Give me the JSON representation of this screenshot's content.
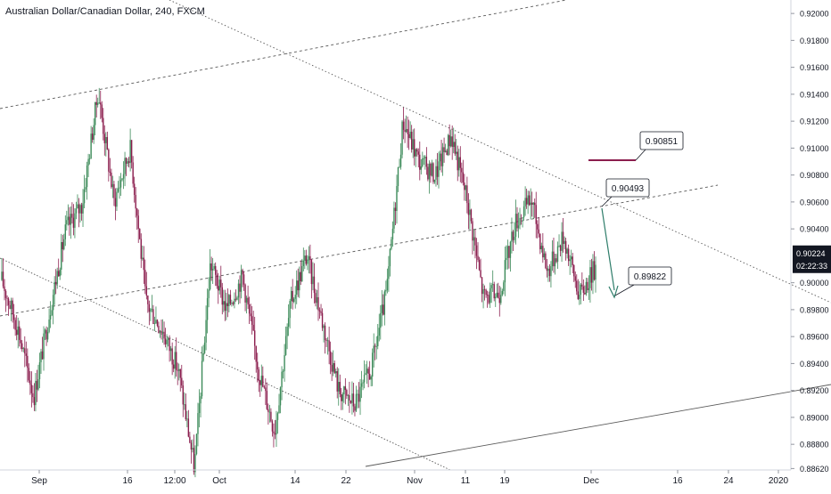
{
  "chart_data": {
    "type": "candlestick",
    "title": "Australian Dollar/Canadian Dollar, 240, FXCM",
    "colors": {
      "up": "#3d8b5a",
      "down": "#8b1e4e",
      "trend_lines": "#5a5a5a",
      "highlight_line": "#8b1e4e",
      "arrow": "#2e7d6a",
      "price_label_bg": "#131722"
    },
    "y_axis": {
      "ylim": [
        0.8853,
        0.921
      ],
      "ticks": [
        "0.92000",
        "0.91800",
        "0.91600",
        "0.91400",
        "0.91200",
        "0.91000",
        "0.90800",
        "0.90600",
        "0.90400",
        "0.90000",
        "0.89800",
        "0.89600",
        "0.89400",
        "0.89200",
        "0.89000",
        "0.88800",
        "0.88620"
      ],
      "current_price": "0.90224",
      "countdown": "02:22:33"
    },
    "x_axis": {
      "ticks": [
        "Sep",
        "16",
        "12:00",
        "Oct",
        "14",
        "22",
        "Nov",
        "11",
        "19",
        "Dec",
        "16",
        "24",
        "2020"
      ]
    },
    "price_path": [
      [
        0.8998,
        0.9002
      ],
      [
        0.8965,
        0.8966
      ],
      [
        0.8918,
        0.8915
      ],
      [
        0.8968,
        0.898
      ],
      [
        0.9042,
        0.904
      ],
      [
        0.904,
        0.9058
      ],
      [
        0.9095,
        0.9142
      ],
      [
        0.91,
        0.906
      ],
      [
        0.9075,
        0.91
      ],
      [
        0.902,
        0.8985
      ],
      [
        0.8985,
        0.8965
      ],
      [
        0.895,
        0.8935
      ],
      [
        0.887,
        0.8862
      ],
      [
        0.8965,
        0.9015
      ],
      [
        0.8985,
        0.898
      ],
      [
        0.9002,
        0.9005
      ],
      [
        0.8935,
        0.8935
      ],
      [
        0.8905,
        0.889
      ],
      [
        0.896,
        0.8985
      ],
      [
        0.9018,
        0.902
      ],
      [
        0.8965,
        0.897
      ],
      [
        0.8925,
        0.892
      ],
      [
        0.8908,
        0.891
      ],
      [
        0.894,
        0.8935
      ],
      [
        0.8985,
        0.8995
      ],
      [
        0.905,
        0.912
      ],
      [
        0.9098,
        0.909
      ],
      [
        0.9072,
        0.908
      ],
      [
        0.9095,
        0.911
      ],
      [
        0.906,
        0.9062
      ],
      [
        0.9,
        0.899
      ],
      [
        0.898,
        0.8992
      ],
      [
        0.903,
        0.9045
      ],
      [
        0.9055,
        0.9062
      ],
      [
        0.901,
        0.9008
      ],
      [
        0.9028,
        0.9035
      ],
      [
        0.8995,
        0.899
      ],
      [
        0.8995,
        0.9012
      ]
    ],
    "annotations": [
      {
        "label": "0.90851"
      },
      {
        "label": "0.90493"
      },
      {
        "label": "0.89822"
      }
    ]
  }
}
